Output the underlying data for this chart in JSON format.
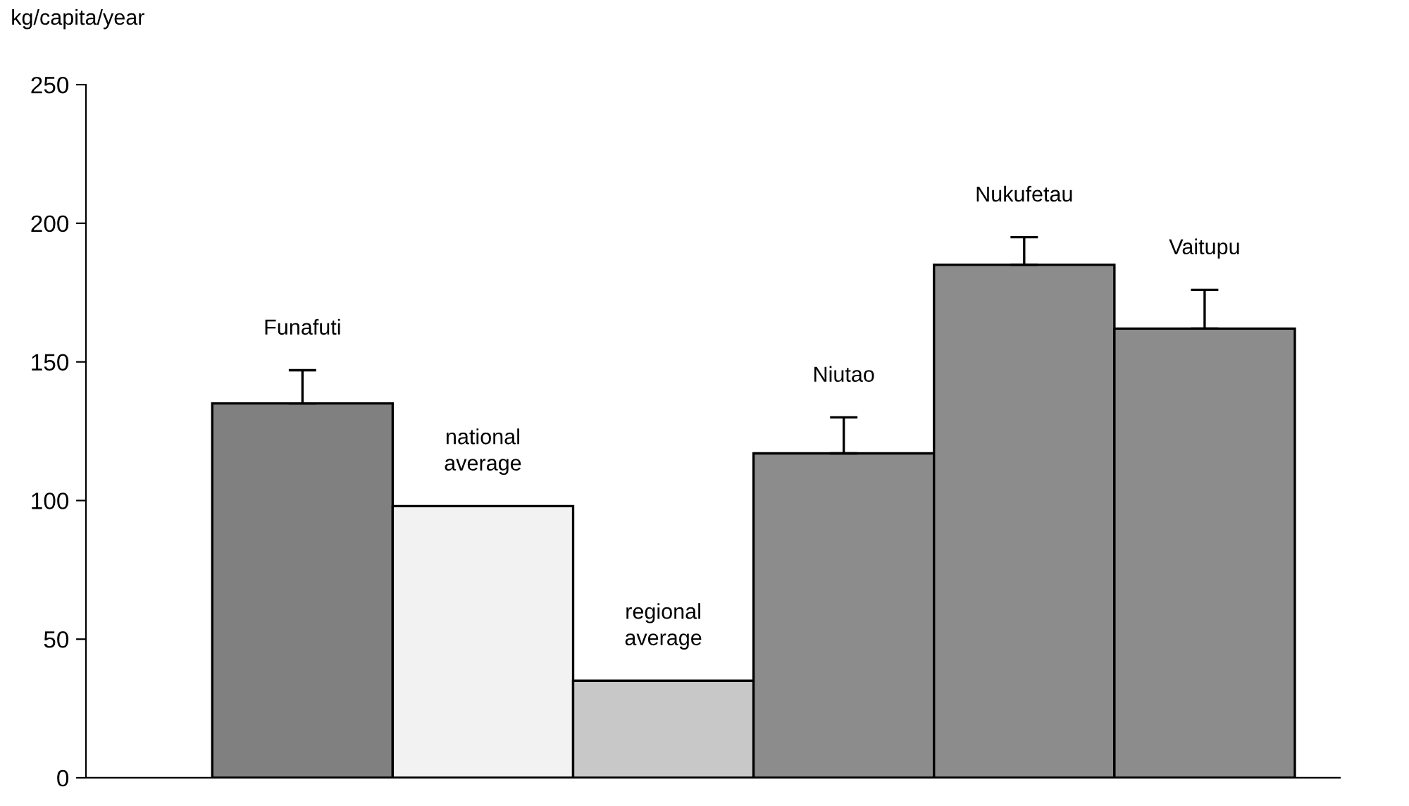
{
  "chart_data": {
    "type": "bar",
    "ylabel": "kg/capita/year",
    "categories": [
      "Funafuti",
      "national average",
      "regional average",
      "Niutao",
      "Nukufetau",
      "Vaitupu"
    ],
    "values": [
      135,
      98,
      35,
      117,
      185,
      162
    ],
    "errors": [
      [
        135,
        147
      ],
      null,
      null,
      [
        117,
        130
      ],
      [
        185,
        195
      ],
      [
        162,
        176
      ]
    ],
    "colors": [
      "#808080",
      "#f2f2f2",
      "#c8c8c8",
      "#8c8c8c",
      "#8c8c8c",
      "#8c8c8c"
    ],
    "ylim": [
      0,
      250
    ],
    "yticks": [
      0,
      50,
      100,
      150,
      200,
      250
    ],
    "tick_labels": "y",
    "grid": false,
    "legend": false
  }
}
